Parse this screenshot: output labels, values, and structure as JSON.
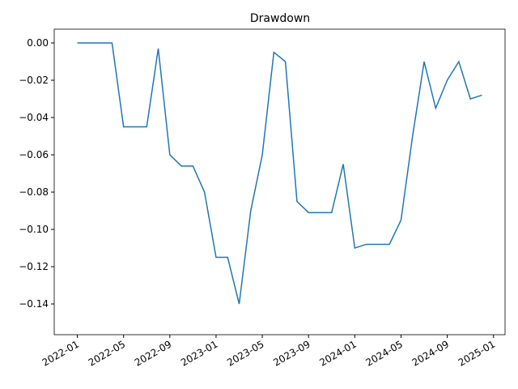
{
  "chart_data": {
    "type": "line",
    "title": "Drawdown",
    "x": [
      "2022-01",
      "2022-02",
      "2022-03",
      "2022-04",
      "2022-05",
      "2022-06",
      "2022-07",
      "2022-08",
      "2022-09",
      "2022-10",
      "2022-11",
      "2022-12",
      "2023-01",
      "2023-02",
      "2023-03",
      "2023-04",
      "2023-05",
      "2023-06",
      "2023-07",
      "2023-08",
      "2023-09",
      "2023-10",
      "2023-11",
      "2023-12",
      "2024-01",
      "2024-02",
      "2024-03",
      "2024-04",
      "2024-05",
      "2024-06",
      "2024-07",
      "2024-08",
      "2024-09",
      "2024-10",
      "2024-11",
      "2024-12"
    ],
    "series": [
      {
        "color": "#1f77b4",
        "values": [
          0,
          0,
          0,
          0,
          -0.045,
          -0.045,
          -0.045,
          -0.003,
          -0.06,
          -0.066,
          -0.066,
          -0.08,
          -0.115,
          -0.115,
          -0.14,
          -0.09,
          -0.06,
          -0.005,
          -0.01,
          -0.085,
          -0.091,
          -0.091,
          -0.091,
          -0.065,
          -0.11,
          -0.108,
          -0.108,
          -0.108,
          -0.095,
          -0.05,
          -0.01,
          -0.035,
          -0.02,
          -0.01,
          -0.03,
          -0.028
        ]
      }
    ],
    "xlim": [
      "2021-11",
      "2025-02"
    ],
    "xticks": [
      "2022-01",
      "2022-05",
      "2022-09",
      "2023-01",
      "2023-05",
      "2023-09",
      "2024-01",
      "2024-05",
      "2024-09",
      "2025-01"
    ],
    "ylim": [
      -0.1565,
      0.0074
    ],
    "yticks": [
      {
        "value": 0,
        "label": "0.00"
      },
      {
        "value": -0.02,
        "label": "−0.02"
      },
      {
        "value": -0.04,
        "label": "−0.04"
      },
      {
        "value": -0.06,
        "label": "−0.06"
      },
      {
        "value": -0.08,
        "label": "−0.08"
      },
      {
        "value": -0.1,
        "label": "−0.10"
      },
      {
        "value": -0.12,
        "label": "−0.12"
      },
      {
        "value": -0.14,
        "label": "−0.14"
      }
    ],
    "grid": false
  }
}
